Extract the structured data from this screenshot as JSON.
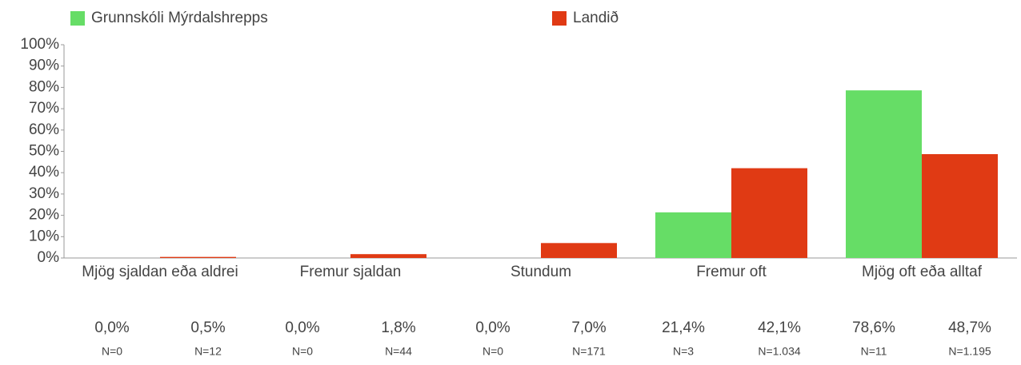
{
  "chart_data": {
    "type": "bar",
    "categories": [
      "Mjög sjaldan eða aldrei",
      "Fremur sjaldan",
      "Stundum",
      "Fremur oft",
      "Mjög oft eða alltaf"
    ],
    "series": [
      {
        "name": "Grunnskóli Mýrdalshrepps",
        "color": "#66dd66",
        "values": [
          0,
          0,
          0,
          21.4,
          78.6
        ],
        "value_labels": [
          "0,0%",
          "0,0%",
          "0,0%",
          "21,4%",
          "78,6%"
        ],
        "n_labels": [
          "N=0",
          "N=0",
          "N=0",
          "N=3",
          "N=11"
        ]
      },
      {
        "name": "Landið",
        "color": "#e03a14",
        "values": [
          0.5,
          1.8,
          7.0,
          42.1,
          48.7
        ],
        "value_labels": [
          "0,5%",
          "1,8%",
          "7,0%",
          "42,1%",
          "48,7%"
        ],
        "n_labels": [
          "N=12",
          "N=44",
          "N=171",
          "N=1.034",
          "N=1.195"
        ]
      }
    ],
    "ylim": [
      0,
      100
    ],
    "yticks": [
      {
        "value": 0,
        "label": "0%"
      },
      {
        "value": 10,
        "label": "10%"
      },
      {
        "value": 20,
        "label": "20%"
      },
      {
        "value": 30,
        "label": "30%"
      },
      {
        "value": 40,
        "label": "40%"
      },
      {
        "value": 50,
        "label": "50%"
      },
      {
        "value": 60,
        "label": "60%"
      },
      {
        "value": 70,
        "label": "70%"
      },
      {
        "value": 80,
        "label": "80%"
      },
      {
        "value": 90,
        "label": "90%"
      },
      {
        "value": 100,
        "label": "100%"
      }
    ],
    "grid": false
  }
}
